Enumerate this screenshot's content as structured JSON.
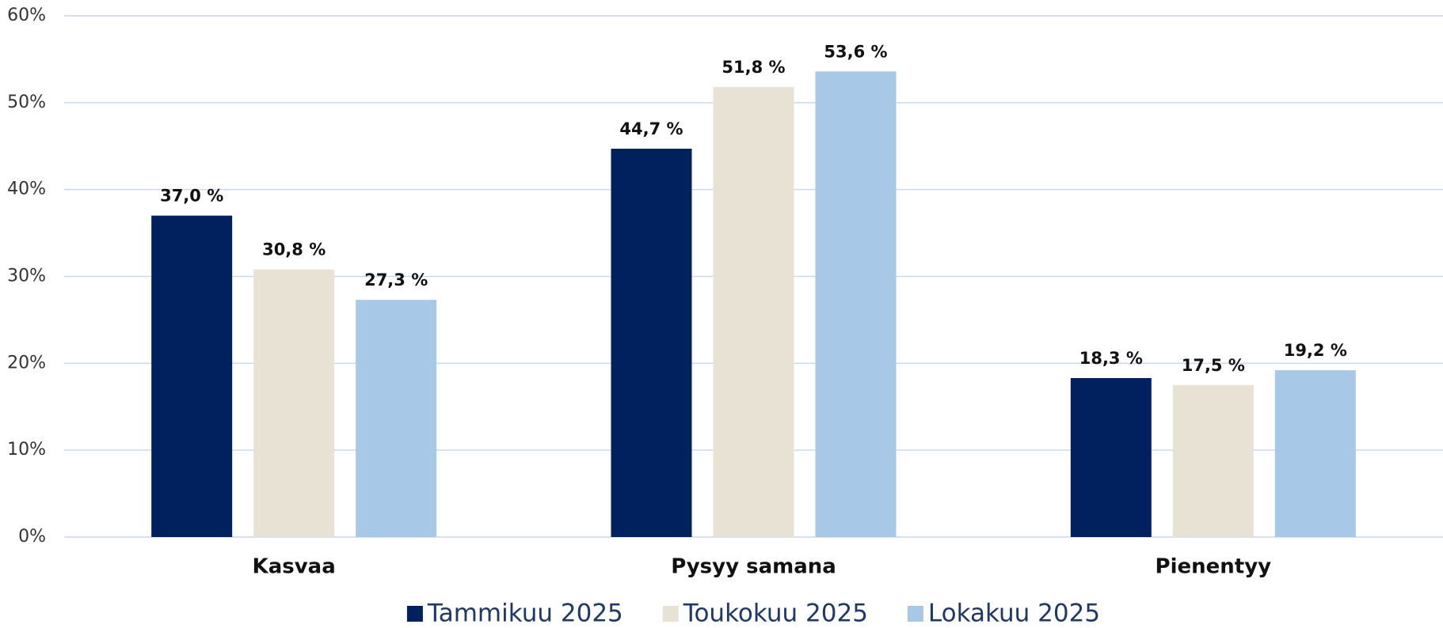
{
  "chart_data": {
    "type": "bar",
    "categories": [
      "Kasvaa",
      "Pysyy samana",
      "Pienentyy"
    ],
    "series": [
      {
        "name": "Tammikuu 2025",
        "color": "#00215e",
        "values": [
          37.0,
          44.7,
          18.3
        ],
        "value_labels": [
          "37,0 %",
          "44,7 %",
          "18,3 %"
        ]
      },
      {
        "name": "Toukokuu 2025",
        "color": "#e8e2d5",
        "values": [
          30.8,
          51.8,
          17.5
        ],
        "value_labels": [
          "30,8 %",
          "51,8 %",
          "17,5 %"
        ]
      },
      {
        "name": "Lokakuu 2025",
        "color": "#a7c8e7",
        "values": [
          27.3,
          53.6,
          19.2
        ],
        "value_labels": [
          "27,3 %",
          "53,6 %",
          "19,2 %"
        ]
      }
    ],
    "ylim": [
      0,
      60
    ],
    "yticks": [
      {
        "value": 0,
        "label": "0%"
      },
      {
        "value": 10,
        "label": "10%"
      },
      {
        "value": 20,
        "label": "20%"
      },
      {
        "value": 30,
        "label": "30%"
      },
      {
        "value": 40,
        "label": "40%"
      },
      {
        "value": 50,
        "label": "50%"
      },
      {
        "value": 60,
        "label": "60%"
      }
    ],
    "grid": true,
    "legend": "bottom"
  }
}
